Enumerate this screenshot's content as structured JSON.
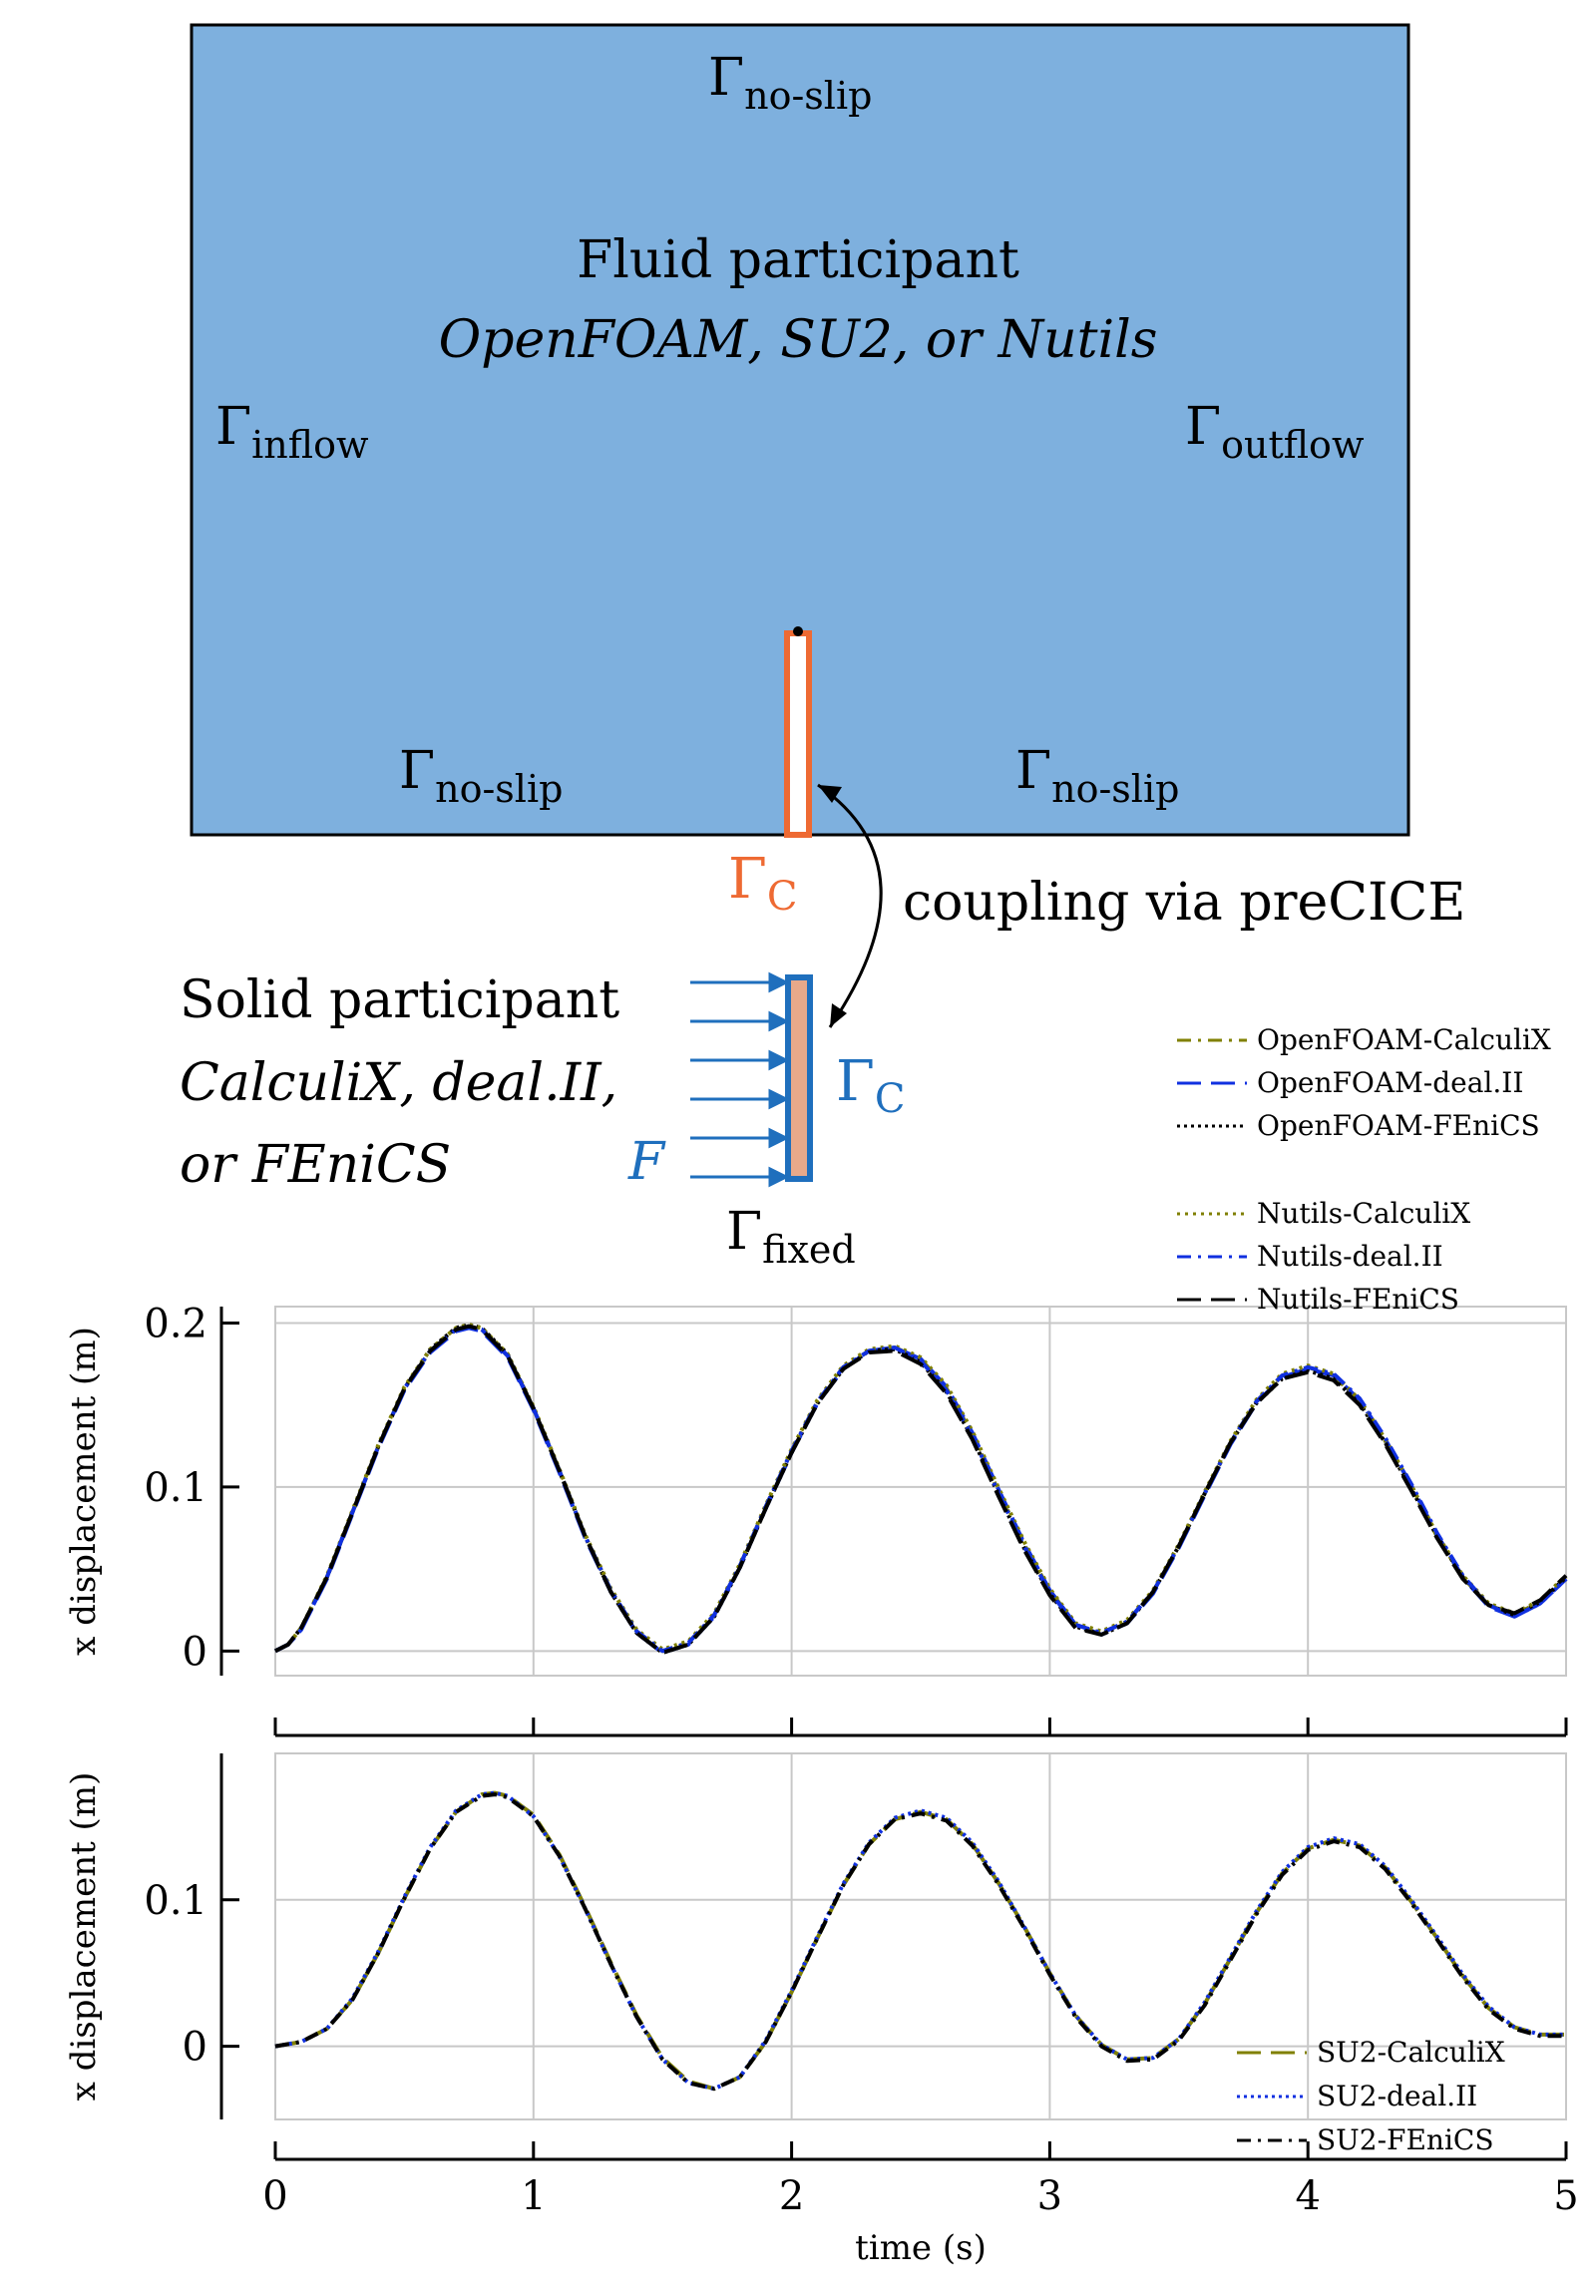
{
  "diagram": {
    "fluid": {
      "title": "Fluid participant",
      "solvers": "OpenFOAM, SU2, or Nutils",
      "color": "#7eb0de"
    },
    "boundaries": {
      "gamma": "Γ",
      "no_slip": "no-slip",
      "inflow": "inflow",
      "outflow": "outflow",
      "coupling": "C",
      "fixed": "fixed"
    },
    "coupling_text": "coupling via preCICE",
    "solid": {
      "title": "Solid participant",
      "solvers_line1": "CalculiX, deal.II,",
      "solvers_line2": "or FEniCS",
      "force": "F",
      "fill_color": "#e8a98a"
    },
    "colors": {
      "interface_fluid": "#ee6a33",
      "interface_solid": "#1f6fbd"
    }
  },
  "chart_data": [
    {
      "type": "line",
      "title": "",
      "xlabel": "",
      "ylabel": "x displacement (m)",
      "xlim": [
        0,
        5
      ],
      "ylim": [
        -0.015,
        0.21
      ],
      "yticks": [
        0,
        0.1,
        0.2
      ],
      "xticks": [
        0,
        1,
        2,
        3,
        4,
        5
      ],
      "grid": true,
      "legend": "outside-top-right",
      "x": [
        0,
        0.05,
        0.1,
        0.2,
        0.3,
        0.4,
        0.5,
        0.6,
        0.7,
        0.75,
        0.8,
        0.9,
        1.0,
        1.1,
        1.2,
        1.3,
        1.4,
        1.5,
        1.6,
        1.7,
        1.8,
        1.9,
        2.0,
        2.1,
        2.2,
        2.3,
        2.4,
        2.5,
        2.6,
        2.7,
        2.8,
        2.9,
        3.0,
        3.1,
        3.2,
        3.3,
        3.4,
        3.5,
        3.6,
        3.7,
        3.8,
        3.9,
        4.0,
        4.1,
        4.2,
        4.3,
        4.4,
        4.5,
        4.6,
        4.7,
        4.8,
        4.9,
        5.0
      ],
      "series": [
        {
          "name": "OpenFOAM-CalculiX",
          "color": "#808000",
          "dash": "14 7 3 7",
          "values": [
            0,
            0.004,
            0.014,
            0.045,
            0.085,
            0.125,
            0.16,
            0.183,
            0.196,
            0.198,
            0.196,
            0.18,
            0.148,
            0.11,
            0.07,
            0.037,
            0.012,
            0,
            0.005,
            0.022,
            0.052,
            0.088,
            0.122,
            0.152,
            0.173,
            0.183,
            0.185,
            0.178,
            0.16,
            0.132,
            0.098,
            0.065,
            0.037,
            0.016,
            0.011,
            0.018,
            0.036,
            0.064,
            0.096,
            0.127,
            0.152,
            0.168,
            0.173,
            0.168,
            0.152,
            0.128,
            0.1,
            0.07,
            0.045,
            0.028,
            0.022,
            0.03,
            0.045
          ]
        },
        {
          "name": "OpenFOAM-deal.II",
          "color": "#1030e0",
          "dash": "24 10",
          "values": [
            0,
            0.004,
            0.013,
            0.044,
            0.084,
            0.124,
            0.159,
            0.182,
            0.195,
            0.197,
            0.195,
            0.179,
            0.147,
            0.109,
            0.069,
            0.036,
            0.011,
            -0.001,
            0.004,
            0.021,
            0.051,
            0.087,
            0.121,
            0.151,
            0.172,
            0.183,
            0.185,
            0.178,
            0.161,
            0.133,
            0.099,
            0.066,
            0.037,
            0.016,
            0.01,
            0.017,
            0.035,
            0.063,
            0.095,
            0.126,
            0.151,
            0.167,
            0.172,
            0.168,
            0.153,
            0.129,
            0.101,
            0.071,
            0.045,
            0.027,
            0.021,
            0.029,
            0.044
          ]
        },
        {
          "name": "OpenFOAM-FEniCS",
          "color": "#000000",
          "dash": "3 4",
          "values": [
            0,
            0.004,
            0.014,
            0.045,
            0.085,
            0.125,
            0.16,
            0.184,
            0.197,
            0.199,
            0.197,
            0.181,
            0.148,
            0.11,
            0.07,
            0.036,
            0.011,
            -0.001,
            0.004,
            0.021,
            0.051,
            0.087,
            0.121,
            0.151,
            0.172,
            0.183,
            0.184,
            0.176,
            0.158,
            0.13,
            0.096,
            0.063,
            0.035,
            0.015,
            0.01,
            0.017,
            0.036,
            0.064,
            0.096,
            0.127,
            0.151,
            0.166,
            0.171,
            0.166,
            0.151,
            0.127,
            0.099,
            0.07,
            0.045,
            0.028,
            0.022,
            0.03,
            0.045
          ]
        },
        {
          "name": "Nutils-CalculiX",
          "color": "#808000",
          "dash": "3 5",
          "values": [
            0,
            0.004,
            0.014,
            0.046,
            0.086,
            0.126,
            0.161,
            0.184,
            0.197,
            0.199,
            0.197,
            0.181,
            0.149,
            0.111,
            0.071,
            0.038,
            0.013,
            0.001,
            0.006,
            0.023,
            0.053,
            0.089,
            0.123,
            0.153,
            0.174,
            0.184,
            0.186,
            0.179,
            0.162,
            0.134,
            0.1,
            0.067,
            0.038,
            0.017,
            0.012,
            0.019,
            0.037,
            0.065,
            0.097,
            0.128,
            0.153,
            0.169,
            0.174,
            0.169,
            0.153,
            0.129,
            0.101,
            0.071,
            0.046,
            0.029,
            0.023,
            0.031,
            0.046
          ]
        },
        {
          "name": "Nutils-deal.II",
          "color": "#1030e0",
          "dash": "14 7 3 7",
          "values": [
            0,
            0.004,
            0.013,
            0.045,
            0.085,
            0.125,
            0.16,
            0.183,
            0.196,
            0.198,
            0.196,
            0.18,
            0.148,
            0.11,
            0.07,
            0.037,
            0.012,
            0,
            0.005,
            0.022,
            0.052,
            0.088,
            0.122,
            0.152,
            0.173,
            0.183,
            0.185,
            0.177,
            0.159,
            0.131,
            0.097,
            0.064,
            0.036,
            0.016,
            0.011,
            0.018,
            0.036,
            0.064,
            0.096,
            0.127,
            0.152,
            0.168,
            0.173,
            0.169,
            0.154,
            0.13,
            0.102,
            0.072,
            0.046,
            0.028,
            0.021,
            0.029,
            0.044
          ]
        },
        {
          "name": "Nutils-FEniCS",
          "color": "#000000",
          "dash": "24 10",
          "values": [
            0,
            0.004,
            0.014,
            0.045,
            0.085,
            0.125,
            0.16,
            0.183,
            0.196,
            0.198,
            0.196,
            0.18,
            0.148,
            0.11,
            0.07,
            0.036,
            0.011,
            -0.001,
            0.004,
            0.021,
            0.051,
            0.087,
            0.121,
            0.151,
            0.172,
            0.182,
            0.183,
            0.175,
            0.157,
            0.129,
            0.095,
            0.062,
            0.034,
            0.014,
            0.01,
            0.017,
            0.036,
            0.064,
            0.096,
            0.127,
            0.151,
            0.166,
            0.17,
            0.165,
            0.15,
            0.126,
            0.098,
            0.069,
            0.044,
            0.028,
            0.023,
            0.031,
            0.046
          ]
        }
      ]
    },
    {
      "type": "line",
      "title": "",
      "xlabel": "time (s)",
      "ylabel": "x displacement (m)",
      "xlim": [
        0,
        5
      ],
      "ylim": [
        -0.05,
        0.2
      ],
      "yticks": [
        0,
        0.1
      ],
      "xticks": [
        0,
        1,
        2,
        3,
        4,
        5
      ],
      "grid": true,
      "legend": "bottom-right",
      "x": [
        0,
        0.1,
        0.2,
        0.3,
        0.4,
        0.5,
        0.6,
        0.7,
        0.8,
        0.85,
        0.9,
        1.0,
        1.1,
        1.2,
        1.3,
        1.4,
        1.5,
        1.6,
        1.7,
        1.8,
        1.9,
        2.0,
        2.1,
        2.2,
        2.3,
        2.4,
        2.5,
        2.6,
        2.7,
        2.8,
        2.9,
        3.0,
        3.1,
        3.2,
        3.3,
        3.4,
        3.5,
        3.6,
        3.7,
        3.8,
        3.9,
        4.0,
        4.1,
        4.2,
        4.3,
        4.4,
        4.5,
        4.6,
        4.7,
        4.8,
        4.9,
        5.0
      ],
      "series": [
        {
          "name": "SU2-CalculiX",
          "color": "#808000",
          "dash": "24 10",
          "values": [
            0,
            0.003,
            0.012,
            0.032,
            0.064,
            0.101,
            0.135,
            0.16,
            0.172,
            0.173,
            0.171,
            0.158,
            0.131,
            0.095,
            0.057,
            0.021,
            -0.008,
            -0.024,
            -0.029,
            -0.021,
            0.003,
            0.037,
            0.074,
            0.11,
            0.138,
            0.155,
            0.16,
            0.155,
            0.138,
            0.112,
            0.082,
            0.05,
            0.021,
            0.001,
            -0.009,
            -0.008,
            0.005,
            0.029,
            0.06,
            0.091,
            0.118,
            0.135,
            0.141,
            0.137,
            0.122,
            0.099,
            0.074,
            0.048,
            0.026,
            0.013,
            0.008,
            0.008
          ]
        },
        {
          "name": "SU2-deal.II",
          "color": "#1030e0",
          "dash": "3 4",
          "values": [
            0,
            0.003,
            0.012,
            0.033,
            0.065,
            0.102,
            0.136,
            0.161,
            0.172,
            0.173,
            0.171,
            0.157,
            0.13,
            0.094,
            0.056,
            0.02,
            -0.009,
            -0.025,
            -0.029,
            -0.021,
            0.004,
            0.038,
            0.075,
            0.111,
            0.139,
            0.156,
            0.161,
            0.156,
            0.139,
            0.113,
            0.082,
            0.05,
            0.021,
            0.001,
            -0.009,
            -0.008,
            0.005,
            0.03,
            0.061,
            0.092,
            0.119,
            0.136,
            0.142,
            0.138,
            0.123,
            0.1,
            0.075,
            0.049,
            0.027,
            0.013,
            0.008,
            0.008
          ]
        },
        {
          "name": "SU2-FEniCS",
          "color": "#000000",
          "dash": "14 7 3 7",
          "values": [
            0,
            0.003,
            0.012,
            0.032,
            0.064,
            0.101,
            0.135,
            0.16,
            0.171,
            0.172,
            0.17,
            0.157,
            0.13,
            0.094,
            0.056,
            0.02,
            -0.009,
            -0.025,
            -0.029,
            -0.021,
            0.003,
            0.037,
            0.074,
            0.11,
            0.138,
            0.155,
            0.159,
            0.154,
            0.137,
            0.111,
            0.081,
            0.049,
            0.02,
            0,
            -0.01,
            -0.009,
            0.004,
            0.028,
            0.059,
            0.09,
            0.117,
            0.134,
            0.14,
            0.136,
            0.121,
            0.098,
            0.073,
            0.047,
            0.025,
            0.012,
            0.007,
            0.007
          ]
        }
      ]
    }
  ]
}
